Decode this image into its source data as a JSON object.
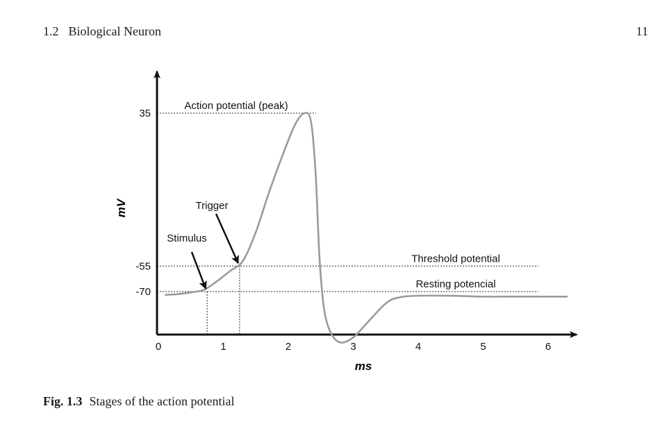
{
  "header": {
    "section_number": "1.2",
    "section_title": "Biological Neuron",
    "page_number": "11"
  },
  "chart_data": {
    "type": "line",
    "xlabel": "ms",
    "ylabel": "mV",
    "x_ticks": [
      0,
      1,
      2,
      3,
      4,
      5,
      6
    ],
    "y_ticks": [
      35,
      -55,
      -70
    ],
    "xlim": [
      0,
      6.5
    ],
    "series": [
      {
        "x": [
          0.1,
          0.3,
          0.5,
          0.7,
          0.9,
          1.1,
          1.3,
          1.5,
          1.7,
          1.9,
          2.1,
          2.25,
          2.35,
          2.42,
          2.48,
          2.55,
          2.65,
          2.8,
          3.0,
          3.2,
          3.5,
          3.7,
          4.0,
          4.5,
          5.0,
          5.5,
          6.0,
          6.3
        ],
        "y": [
          -72,
          -71.5,
          -70.5,
          -69,
          -64,
          -58,
          -52,
          -35,
          -12,
          9,
          28,
          35,
          30,
          0,
          -50,
          -80,
          -94,
          -100,
          -97,
          -89,
          -77,
          -73.5,
          -72.5,
          -72.5,
          -73,
          -73,
          -73,
          -73
        ]
      }
    ],
    "reference_lines": [
      {
        "axis": "y",
        "value": 35,
        "label": "Action potential (peak)"
      },
      {
        "axis": "y",
        "value": -55,
        "label": "Threshold potential"
      },
      {
        "axis": "y",
        "value": -70,
        "label": "Resting potencial"
      }
    ],
    "annotations": [
      {
        "label": "Stimulus",
        "x": 0.75,
        "y": -70
      },
      {
        "label": "Trigger",
        "x": 1.25,
        "y": -55
      }
    ],
    "grid": false,
    "line_color": "#9a9a9a"
  },
  "caption": {
    "label": "Fig. 1.3",
    "text": "Stages of the action potential"
  }
}
